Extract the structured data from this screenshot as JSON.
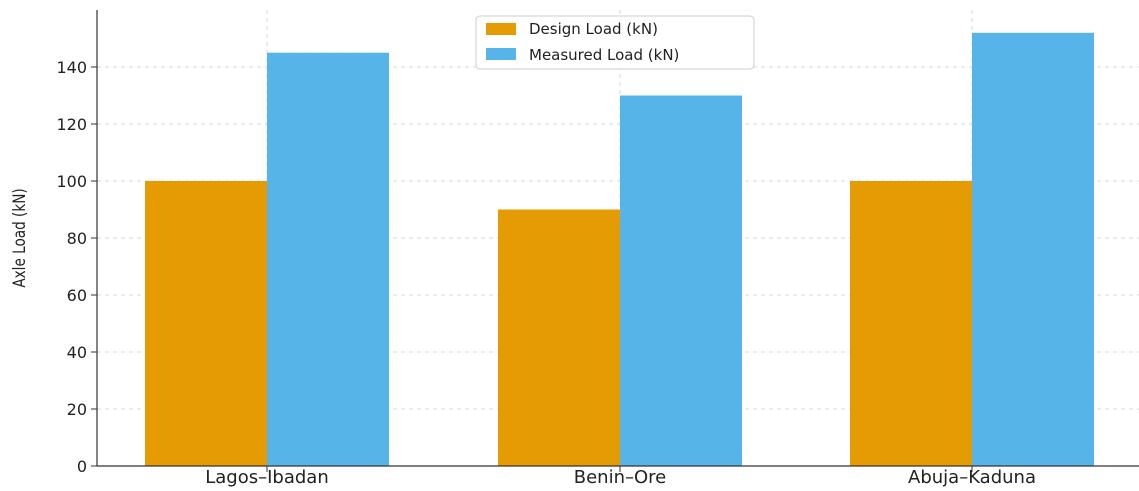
{
  "chart_data": {
    "type": "bar",
    "title": "",
    "xlabel": "",
    "ylabel": "Axle Load (kN)",
    "categories": [
      "Lagos–Ibadan",
      "Benin–Ore",
      "Abuja–Kaduna"
    ],
    "series": [
      {
        "name": "Design Load (kN)",
        "values": [
          100,
          90,
          100
        ],
        "color": "#E49B04"
      },
      {
        "name": "Measured Load (kN)",
        "values": [
          145,
          130,
          152
        ],
        "color": "#56B4E9"
      }
    ],
    "ylim": [
      0,
      160
    ],
    "yticks": [
      0,
      20,
      40,
      60,
      80,
      100,
      120,
      140
    ],
    "grid": true,
    "legend_position": "top-center"
  }
}
